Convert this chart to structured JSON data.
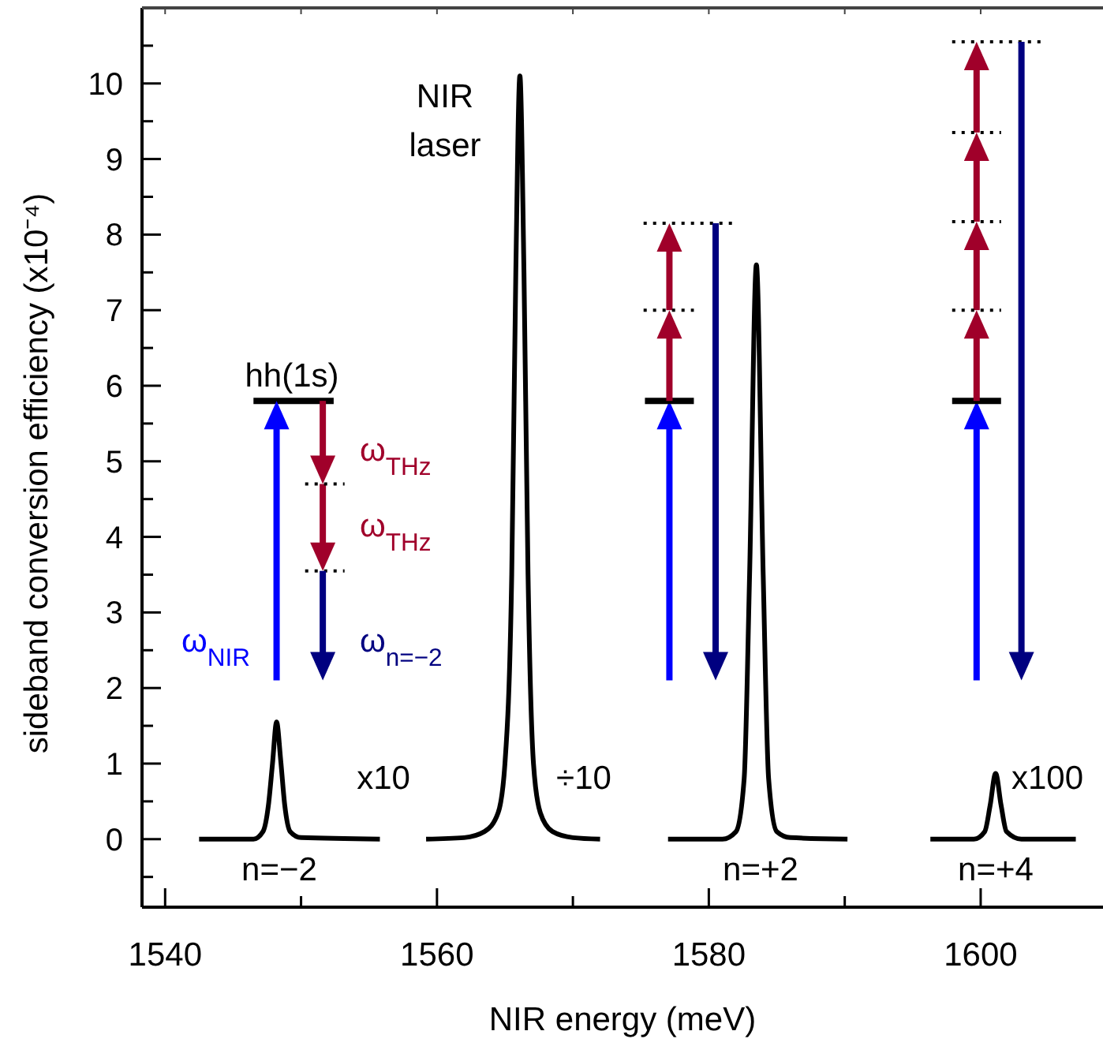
{
  "chart_data": {
    "type": "line",
    "xlabel": "NIR energy (meV)",
    "ylabel": "sideband conversion efficiency (x10⁻⁴)",
    "xlim": [
      1538.3,
      1609
    ],
    "ylim": [
      -0.9,
      11
    ],
    "xticks": [
      1540,
      {
        "value": 1550,
        "label": null
      },
      1560,
      {
        "value": 1570,
        "label": null
      },
      1580,
      {
        "value": 1590,
        "label": null
      },
      1600
    ],
    "yticks": [
      {
        "value": -0.5,
        "label": null
      },
      0,
      {
        "value": 0.5,
        "label": null
      },
      1,
      {
        "value": 1.5,
        "label": null
      },
      2,
      {
        "value": 2.5,
        "label": null
      },
      3,
      {
        "value": 3.5,
        "label": null
      },
      4,
      {
        "value": 4.5,
        "label": null
      },
      5,
      {
        "value": 5.5,
        "label": null
      },
      6,
      {
        "value": 6.5,
        "label": null
      },
      7,
      {
        "value": 7.5,
        "label": null
      },
      8,
      {
        "value": 8.5,
        "label": null
      },
      9,
      {
        "value": 9.5,
        "label": null
      },
      10,
      {
        "value": 10.5,
        "label": null
      }
    ],
    "grid": false,
    "marker": "none",
    "line_style": "solid",
    "series": [
      {
        "color": "#000000",
        "x": [
          1542.5,
          1546.5,
          1547.2,
          1547.6,
          1547.9,
          1548.2,
          1548.5,
          1548.8,
          1549.2,
          1550,
          1555.8
        ],
        "values": [
          0,
          0,
          0.1,
          0.45,
          1.0,
          1.55,
          1.05,
          0.45,
          0.1,
          0.02,
          0
        ]
      },
      {
        "color": "#000000",
        "x": [
          1559.2,
          1562,
          1563.5,
          1564.5,
          1565.0,
          1565.5,
          1565.8,
          1566.1,
          1566.4,
          1566.7,
          1567.1,
          1567.6,
          1568.5,
          1570,
          1572
        ],
        "values": [
          0,
          0.02,
          0.1,
          0.35,
          1.0,
          3.5,
          7.5,
          10.1,
          7.5,
          3.5,
          1.0,
          0.35,
          0.1,
          0.02,
          0
        ]
      },
      {
        "color": "#000000",
        "x": [
          1577,
          1581,
          1582.0,
          1582.6,
          1583.0,
          1583.5,
          1584.0,
          1584.4,
          1585.0,
          1586,
          1590.2
        ],
        "values": [
          0,
          0,
          0.1,
          0.8,
          3.5,
          7.6,
          3.5,
          0.8,
          0.1,
          0.02,
          0
        ]
      },
      {
        "color": "#000000",
        "x": [
          1596.3,
          1599.5,
          1600.3,
          1600.7,
          1601.1,
          1601.5,
          1601.9,
          1603,
          1607
        ],
        "values": [
          0,
          0,
          0.1,
          0.45,
          0.87,
          0.45,
          0.1,
          0,
          0
        ]
      }
    ],
    "annotations": [
      "NIR\nlaser",
      "x10",
      "÷10",
      "x100",
      "n=−2",
      "n=+2",
      "n=+4",
      "hh(1s)",
      "ω$_{THz}$",
      "ω$_{THz}$",
      "ω$_{NIR}$",
      "ω$_{n=−2}$"
    ]
  }
}
